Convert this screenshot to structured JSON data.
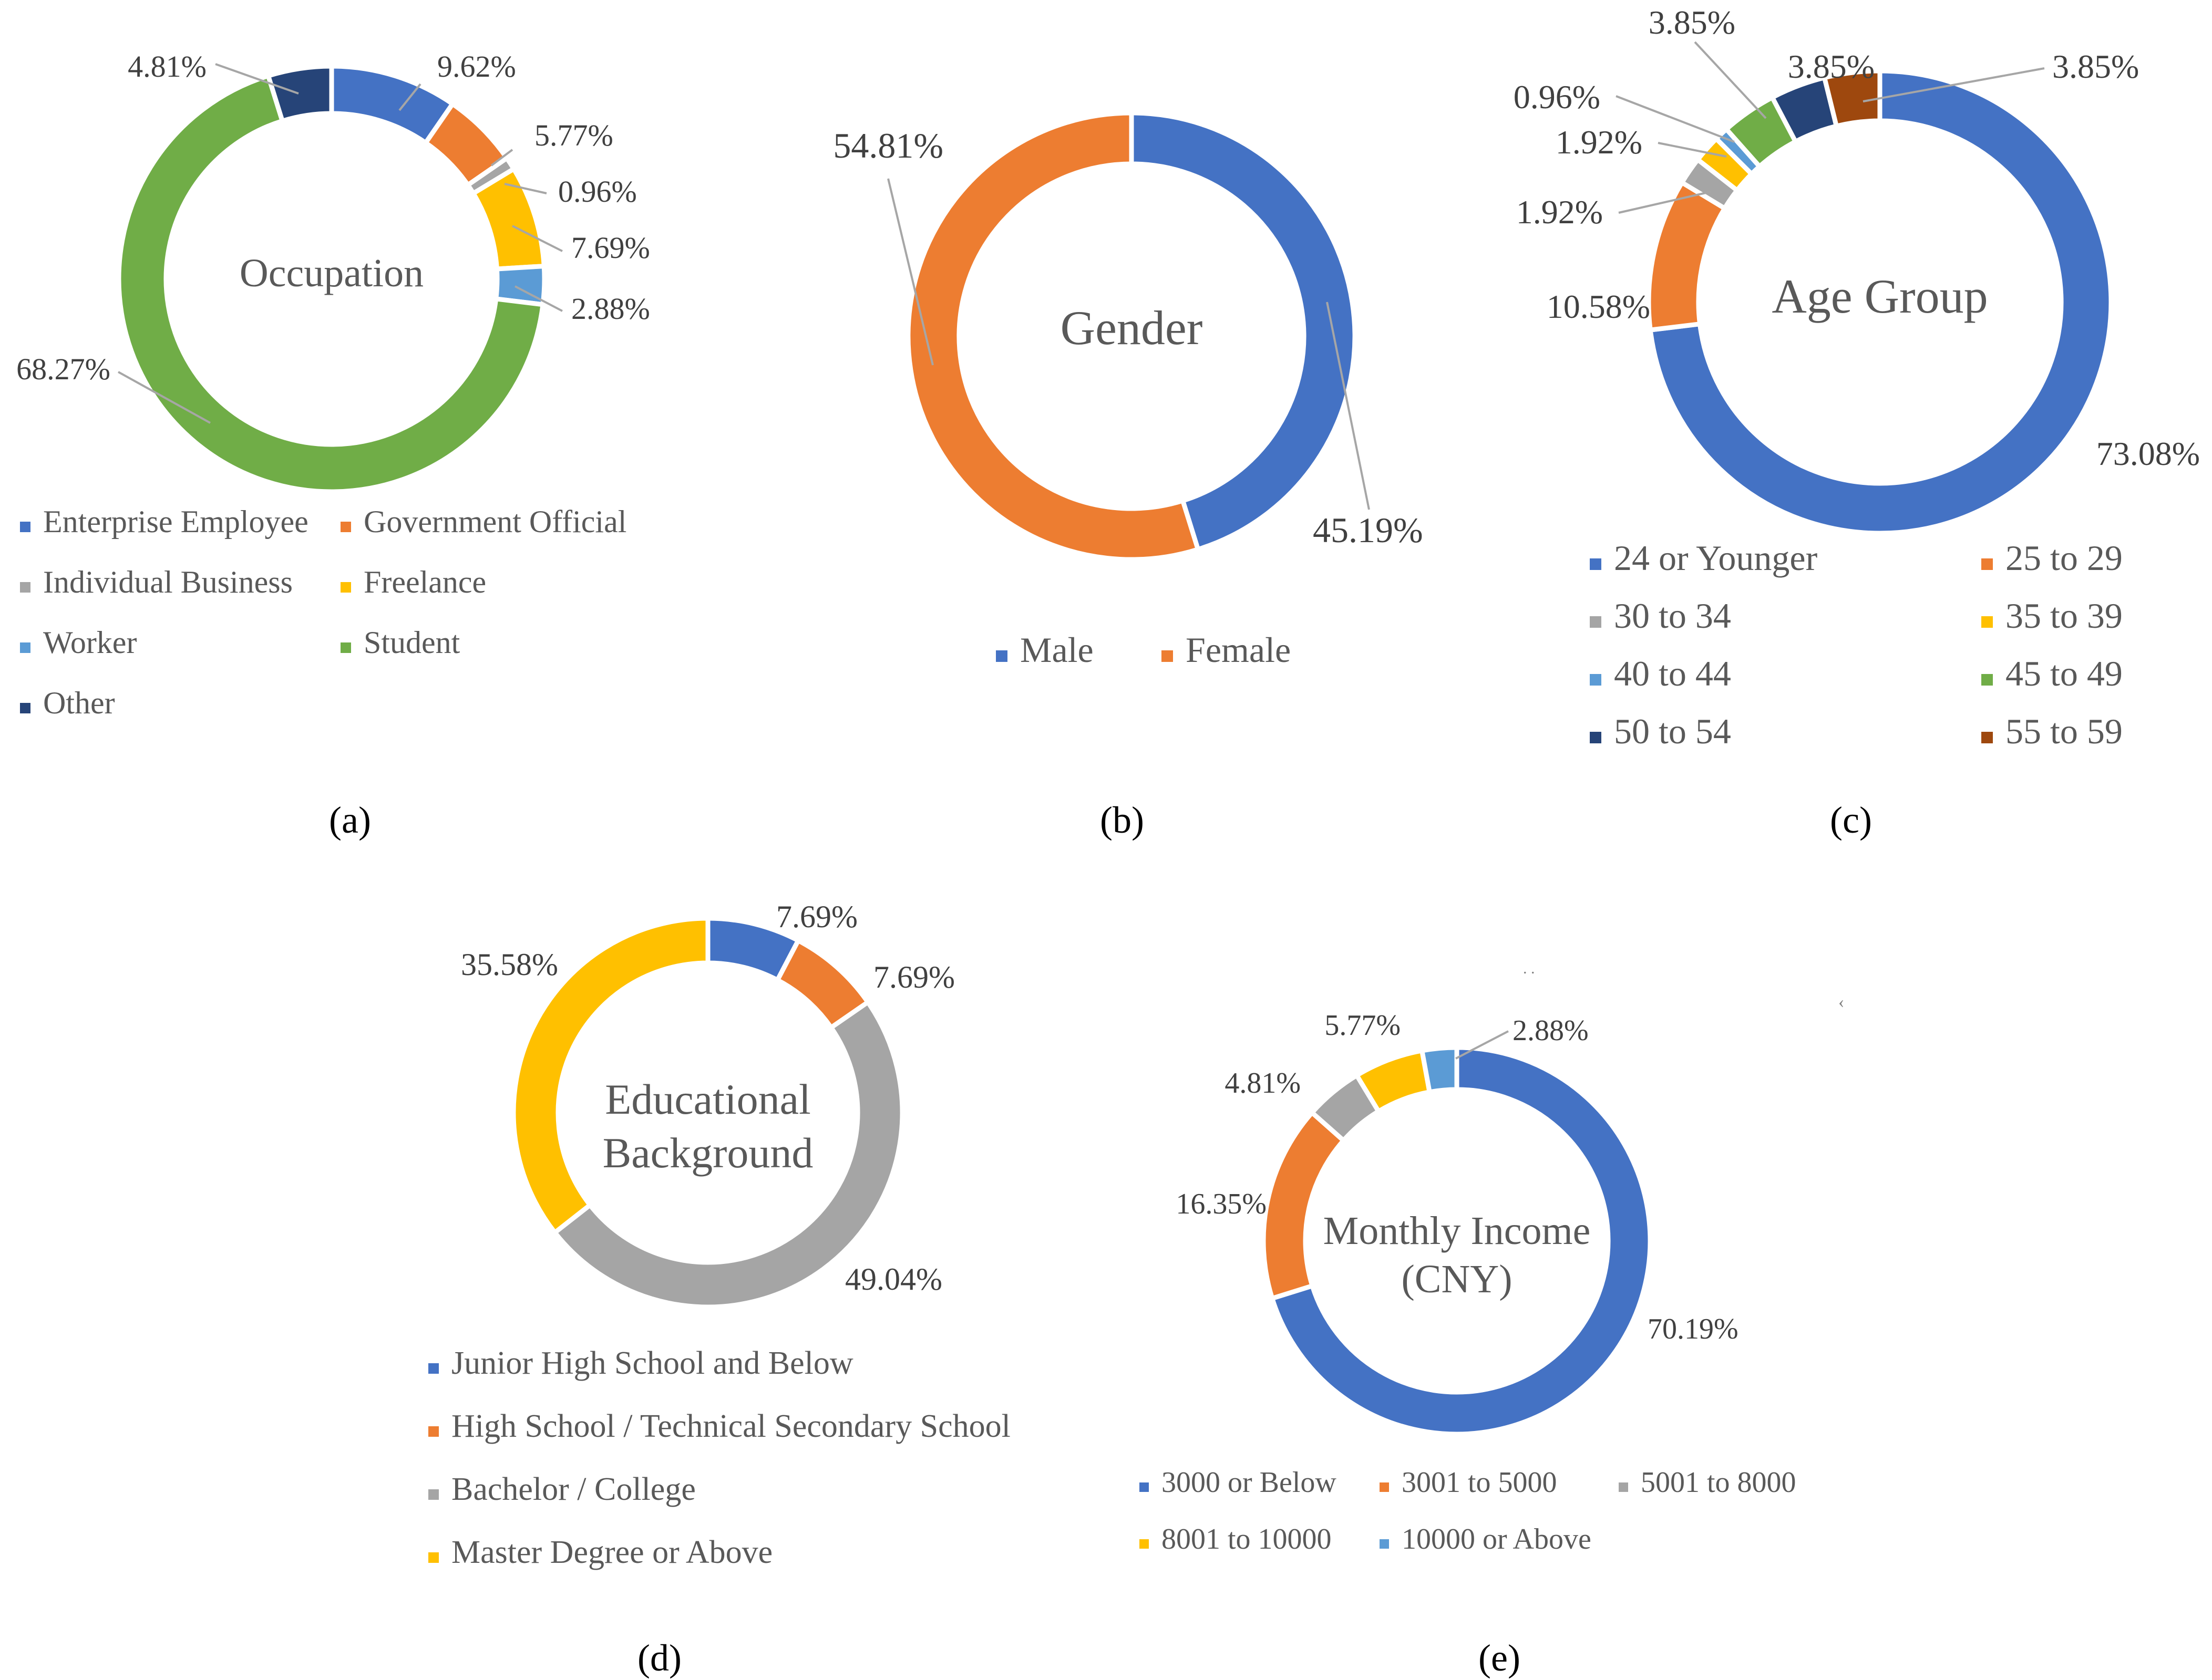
{
  "figure": {
    "stray_marks": [
      ". .",
      "‹"
    ]
  },
  "chart_data": [
    {
      "type": "pie",
      "variant": "doughnut",
      "title": "Occupation",
      "caption": "(a)",
      "categories": [
        "Enterprise Employee",
        "Government Official",
        "Individual Business",
        "Freelance",
        "Worker",
        "Student",
        "Other"
      ],
      "values": [
        9.62,
        5.77,
        0.96,
        7.69,
        2.88,
        68.27,
        4.81
      ],
      "labels": [
        "9.62%",
        "5.77%",
        "0.96%",
        "7.69%",
        "2.88%",
        "68.27%",
        "4.81%"
      ],
      "colors": [
        "#4472C4",
        "#ED7D31",
        "#A5A5A5",
        "#FFC000",
        "#5B9BD5",
        "#70AD47",
        "#264478"
      ],
      "legend_position": "bottom"
    },
    {
      "type": "pie",
      "variant": "doughnut",
      "title": "Gender",
      "caption": "(b)",
      "categories": [
        "Male",
        "Female"
      ],
      "values": [
        45.19,
        54.81
      ],
      "labels": [
        "45.19%",
        "54.81%"
      ],
      "colors": [
        "#4472C4",
        "#ED7D31"
      ],
      "legend_position": "bottom"
    },
    {
      "type": "pie",
      "variant": "doughnut",
      "title": "Age Group",
      "caption": "(c)",
      "categories": [
        "24 or Younger",
        "25 to 29",
        "30 to 34",
        "35 to 39",
        "40 to 44",
        "45 to 49",
        "50 to 54",
        "55 to 59"
      ],
      "values": [
        73.08,
        10.58,
        1.92,
        1.92,
        0.96,
        3.85,
        3.85,
        3.85
      ],
      "labels": [
        "73.08%",
        "10.58%",
        "1.92%",
        "1.92%",
        "0.96%",
        "3.85%",
        "3.85%",
        "3.85%"
      ],
      "colors": [
        "#4472C4",
        "#ED7D31",
        "#A5A5A5",
        "#FFC000",
        "#5B9BD5",
        "#70AD47",
        "#264478",
        "#9E480E"
      ],
      "legend_position": "bottom"
    },
    {
      "type": "pie",
      "variant": "doughnut",
      "title": "Educational Background",
      "title_lines": [
        "Educational",
        "Background"
      ],
      "caption": "(d)",
      "categories": [
        "Junior High School and Below",
        "High School / Technical Secondary School",
        "Bachelor / College",
        "Master Degree or Above"
      ],
      "values": [
        7.69,
        7.69,
        49.04,
        35.58
      ],
      "labels": [
        "7.69%",
        "7.69%",
        "49.04%",
        "35.58%"
      ],
      "colors": [
        "#4472C4",
        "#ED7D31",
        "#A5A5A5",
        "#FFC000"
      ],
      "legend_position": "bottom"
    },
    {
      "type": "pie",
      "variant": "doughnut",
      "title": "Monthly Income (CNY)",
      "title_lines": [
        "Monthly Income",
        "(CNY)"
      ],
      "caption": "(e)",
      "categories": [
        "3000 or Below",
        "3001 to 5000",
        "5001 to 8000",
        "8001 to 10000",
        "10000 or Above"
      ],
      "values": [
        70.19,
        16.35,
        4.81,
        5.77,
        2.88
      ],
      "labels": [
        "70.19%",
        "16.35%",
        "4.81%",
        "5.77%",
        "2.88%"
      ],
      "colors": [
        "#4472C4",
        "#ED7D31",
        "#A5A5A5",
        "#FFC000",
        "#5B9BD5"
      ],
      "legend_position": "bottom"
    }
  ]
}
